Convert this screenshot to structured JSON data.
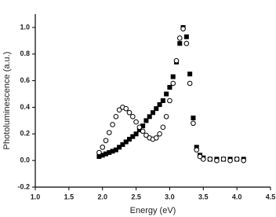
{
  "chart_data": {
    "type": "scatter",
    "xlabel": "Energy (eV)",
    "ylabel": "Photoluminescence (a.u.)",
    "xlim": [
      1.0,
      4.5
    ],
    "xticks": [
      {
        "value": 1.0,
        "label": "1.0"
      },
      1.5,
      {
        "value": 2.0,
        "label": "2.0"
      },
      2.5,
      {
        "value": 3.0,
        "label": "3.0"
      },
      3.5,
      {
        "value": 4.0,
        "label": "4.0"
      },
      4.5
    ],
    "ylim": [
      -0.2,
      1.1
    ],
    "yticks": [
      -0.2,
      {
        "value": 0.0,
        "label": "0.0"
      },
      0.2,
      0.4,
      0.6,
      0.8,
      {
        "value": 1.0,
        "label": "1.0"
      }
    ],
    "x": [
      1.95,
      2.0,
      2.05,
      2.1,
      2.15,
      2.2,
      2.25,
      2.3,
      2.35,
      2.4,
      2.45,
      2.5,
      2.55,
      2.6,
      2.65,
      2.7,
      2.75,
      2.8,
      2.85,
      2.9,
      2.95,
      3.0,
      3.05,
      3.1,
      3.15,
      3.2,
      3.25,
      3.3,
      3.35,
      3.4,
      3.45,
      3.5,
      3.6,
      3.7,
      3.8,
      3.9,
      4.0,
      4.1
    ],
    "series": [
      {
        "color": "#000000",
        "marker": "square",
        "filled": true,
        "values": [
          0.03,
          0.04,
          0.05,
          0.06,
          0.07,
          0.08,
          0.1,
          0.12,
          0.14,
          0.16,
          0.18,
          0.2,
          0.23,
          0.26,
          0.3,
          0.33,
          0.36,
          0.39,
          0.42,
          0.45,
          0.5,
          0.55,
          0.63,
          0.74,
          0.88,
          1.0,
          0.93,
          0.65,
          0.32,
          0.1,
          0.04,
          0.02,
          0.01,
          0.01,
          0.01,
          0.01,
          0.01,
          0.01
        ]
      },
      {
        "color": "#000000",
        "marker": "circle",
        "filled": false,
        "values": [
          0.06,
          0.1,
          0.15,
          0.21,
          0.27,
          0.33,
          0.38,
          0.4,
          0.39,
          0.36,
          0.33,
          0.29,
          0.25,
          0.22,
          0.19,
          0.17,
          0.16,
          0.17,
          0.2,
          0.25,
          0.33,
          0.45,
          0.58,
          0.75,
          0.92,
          0.99,
          0.88,
          0.58,
          0.28,
          0.08,
          0.03,
          0.01,
          0.01,
          0.0,
          0.01,
          0.0,
          0.01,
          0.0
        ]
      }
    ]
  }
}
